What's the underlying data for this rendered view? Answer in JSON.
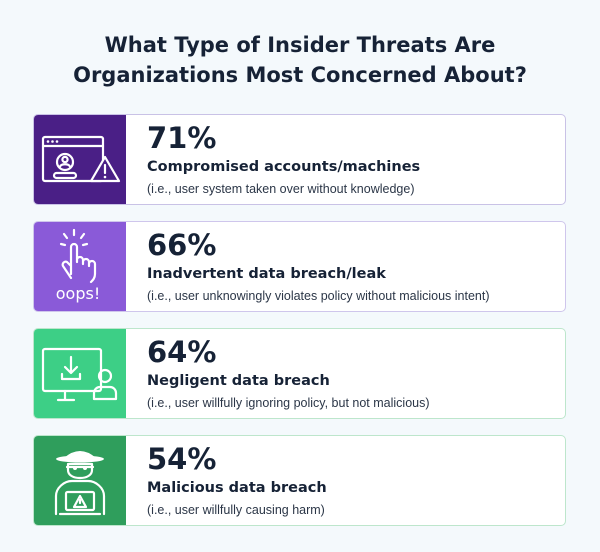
{
  "title_line1": "What Type of Insider Threats Are",
  "title_line2": "Organizations Most Concerned About?",
  "chart_data": {
    "type": "table",
    "title": "What Type of Insider Threats Are Organizations Most Concerned About?",
    "categories": [
      "Compromised accounts/machines",
      "Inadvertent data breach/leak",
      "Negligent data breach",
      "Malicious data breach"
    ],
    "values": [
      71,
      66,
      64,
      54
    ],
    "value_labels": [
      "71%",
      "66%",
      "64%",
      "54%"
    ],
    "descriptions": [
      "(i.e., user system taken over without knowledge)",
      "(i.e., user unknowingly violates policy without malicious intent)",
      "(i.e., user willfully ignoring policy, but not malicious)",
      "(i.e., user willfully causing harm)"
    ],
    "icons": [
      "browser-warning-icon",
      "tap-oops-icon",
      "monitor-download-user-icon",
      "hacker-laptop-icon"
    ],
    "icon_badge_text": [
      "",
      "oops!",
      "",
      ""
    ],
    "panel_colors": [
      "#4a1f86",
      "#8a5ad8",
      "#3dcf86",
      "#2f9e5c"
    ],
    "border_colors": [
      "#c9c2e6",
      "#cfc6ec",
      "#bde6cc",
      "#bde6cc"
    ]
  }
}
